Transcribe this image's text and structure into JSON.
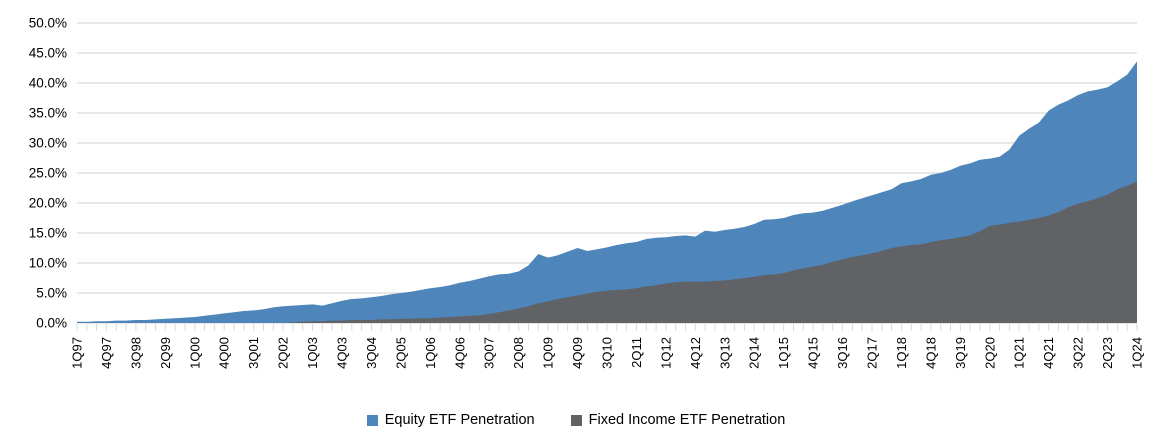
{
  "chart_data": {
    "type": "area",
    "overlap": true,
    "title": "",
    "xlabel": "",
    "ylabel": "",
    "ylim": [
      0,
      50
    ],
    "y_tick_step": 5,
    "y_ticks": [
      "0.0%",
      "5.0%",
      "10.0%",
      "15.0%",
      "20.0%",
      "25.0%",
      "30.0%",
      "35.0%",
      "40.0%",
      "45.0%",
      "50.0%"
    ],
    "n_points": 109,
    "label_interval": 3,
    "x_tick_labels": [
      "1Q97",
      "4Q97",
      "3Q98",
      "2Q99",
      "1Q00",
      "4Q00",
      "3Q01",
      "2Q02",
      "1Q03",
      "4Q03",
      "3Q04",
      "2Q05",
      "1Q06",
      "4Q06",
      "3Q07",
      "2Q08",
      "1Q09",
      "4Q09",
      "3Q10",
      "2Q11",
      "1Q12",
      "4Q12",
      "3Q13",
      "2Q14",
      "1Q15",
      "4Q15",
      "3Q16",
      "2Q17",
      "1Q18",
      "4Q18",
      "3Q19",
      "2Q20",
      "1Q21",
      "4Q21",
      "3Q22",
      "2Q23",
      "1Q24"
    ],
    "grid": true,
    "gridline_color": "#D9D9D9",
    "axis_color": "#D9D9D9",
    "text_color": "#000000",
    "legend_position": "bottom-center",
    "series": [
      {
        "name": "Equity ETF Penetration",
        "color": "#4E86BC",
        "values": [
          0.2,
          0.2,
          0.3,
          0.3,
          0.4,
          0.4,
          0.5,
          0.5,
          0.6,
          0.7,
          0.8,
          0.9,
          1.0,
          1.2,
          1.4,
          1.6,
          1.8,
          2.0,
          2.1,
          2.3,
          2.6,
          2.8,
          2.9,
          3.0,
          3.1,
          2.9,
          3.3,
          3.7,
          4.0,
          4.1,
          4.3,
          4.5,
          4.8,
          5.0,
          5.2,
          5.5,
          5.8,
          6.0,
          6.3,
          6.7,
          7.0,
          7.4,
          7.8,
          8.1,
          8.2,
          8.6,
          9.6,
          11.5,
          10.9,
          11.3,
          11.9,
          12.5,
          12.0,
          12.3,
          12.6,
          13.0,
          13.3,
          13.5,
          14.0,
          14.2,
          14.3,
          14.5,
          14.6,
          14.4,
          15.4,
          15.2,
          15.5,
          15.7,
          16.0,
          16.5,
          17.2,
          17.3,
          17.5,
          18.0,
          18.3,
          18.4,
          18.7,
          19.2,
          19.7,
          20.3,
          20.8,
          21.3,
          21.8,
          22.3,
          23.3,
          23.6,
          24.0,
          24.7,
          25.0,
          25.5,
          26.2,
          26.6,
          27.2,
          27.4,
          27.7,
          28.9,
          31.2,
          32.4,
          33.4,
          35.4,
          36.4,
          37.1,
          38.0,
          38.6,
          38.9,
          39.3,
          40.3,
          41.4,
          43.6
        ]
      },
      {
        "name": "Fixed Income ETF Penetration",
        "color": "#606266",
        "values": [
          0,
          0,
          0,
          0,
          0,
          0,
          0,
          0,
          0,
          0,
          0,
          0,
          0,
          0,
          0,
          0,
          0,
          0,
          0,
          0,
          0,
          0,
          0.1,
          0.2,
          0.3,
          0.3,
          0.4,
          0.4,
          0.5,
          0.5,
          0.5,
          0.6,
          0.6,
          0.7,
          0.7,
          0.8,
          0.8,
          0.9,
          1.0,
          1.1,
          1.2,
          1.3,
          1.5,
          1.8,
          2.1,
          2.4,
          2.8,
          3.3,
          3.6,
          4.0,
          4.3,
          4.6,
          4.9,
          5.2,
          5.4,
          5.5,
          5.6,
          5.8,
          6.1,
          6.3,
          6.6,
          6.8,
          6.9,
          6.9,
          6.9,
          7.0,
          7.1,
          7.3,
          7.5,
          7.7,
          8.0,
          8.1,
          8.3,
          8.8,
          9.1,
          9.4,
          9.7,
          10.2,
          10.6,
          11.0,
          11.3,
          11.6,
          12.0,
          12.5,
          12.8,
          13.0,
          13.1,
          13.5,
          13.8,
          14.0,
          14.3,
          14.6,
          15.3,
          16.2,
          16.4,
          16.7,
          16.9,
          17.2,
          17.5,
          17.9,
          18.5,
          19.3,
          19.9,
          20.3,
          20.8,
          21.4,
          22.3,
          22.9,
          23.6
        ]
      }
    ]
  },
  "legend": {
    "equity_label": "Equity ETF Penetration",
    "fixed_income_label": "Fixed Income ETF Penetration"
  }
}
